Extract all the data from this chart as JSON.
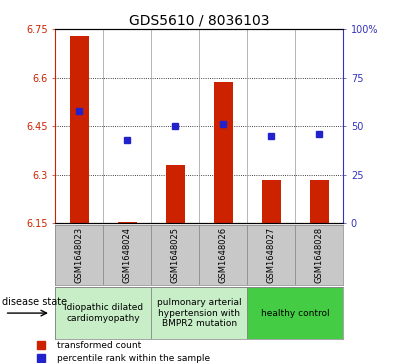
{
  "title": "GDS5610 / 8036103",
  "samples": [
    "GSM1648023",
    "GSM1648024",
    "GSM1648025",
    "GSM1648026",
    "GSM1648027",
    "GSM1648028"
  ],
  "red_values": [
    6.73,
    6.155,
    6.33,
    6.585,
    6.285,
    6.285
  ],
  "blue_values": [
    58,
    43,
    50,
    51,
    45,
    46
  ],
  "ylim_left": [
    6.15,
    6.75
  ],
  "ylim_right": [
    0,
    100
  ],
  "yticks_left": [
    6.15,
    6.3,
    6.45,
    6.6,
    6.75
  ],
  "yticks_right": [
    0,
    25,
    50,
    75,
    100
  ],
  "ytick_labels_right": [
    "0",
    "25",
    "50",
    "75",
    "100%"
  ],
  "bar_color": "#cc2200",
  "dot_color": "#2222cc",
  "baseline": 6.15,
  "groups": [
    {
      "label": "idiopathic dilated\ncardiomyopathy",
      "cols": [
        0,
        1
      ],
      "color": "#c8eec8"
    },
    {
      "label": "pulmonary arterial\nhypertension with\nBMPR2 mutation",
      "cols": [
        2,
        3
      ],
      "color": "#c8eec8"
    },
    {
      "label": "healthy control",
      "cols": [
        4,
        5
      ],
      "color": "#44cc44"
    }
  ],
  "disease_state_label": "disease state",
  "legend_red": "transformed count",
  "legend_blue": "percentile rank within the sample",
  "plot_bg": "#ffffff",
  "title_fontsize": 10,
  "tick_fontsize": 7,
  "label_fontsize": 7,
  "sample_label_fontsize": 6,
  "group_label_fontsize": 6.5
}
